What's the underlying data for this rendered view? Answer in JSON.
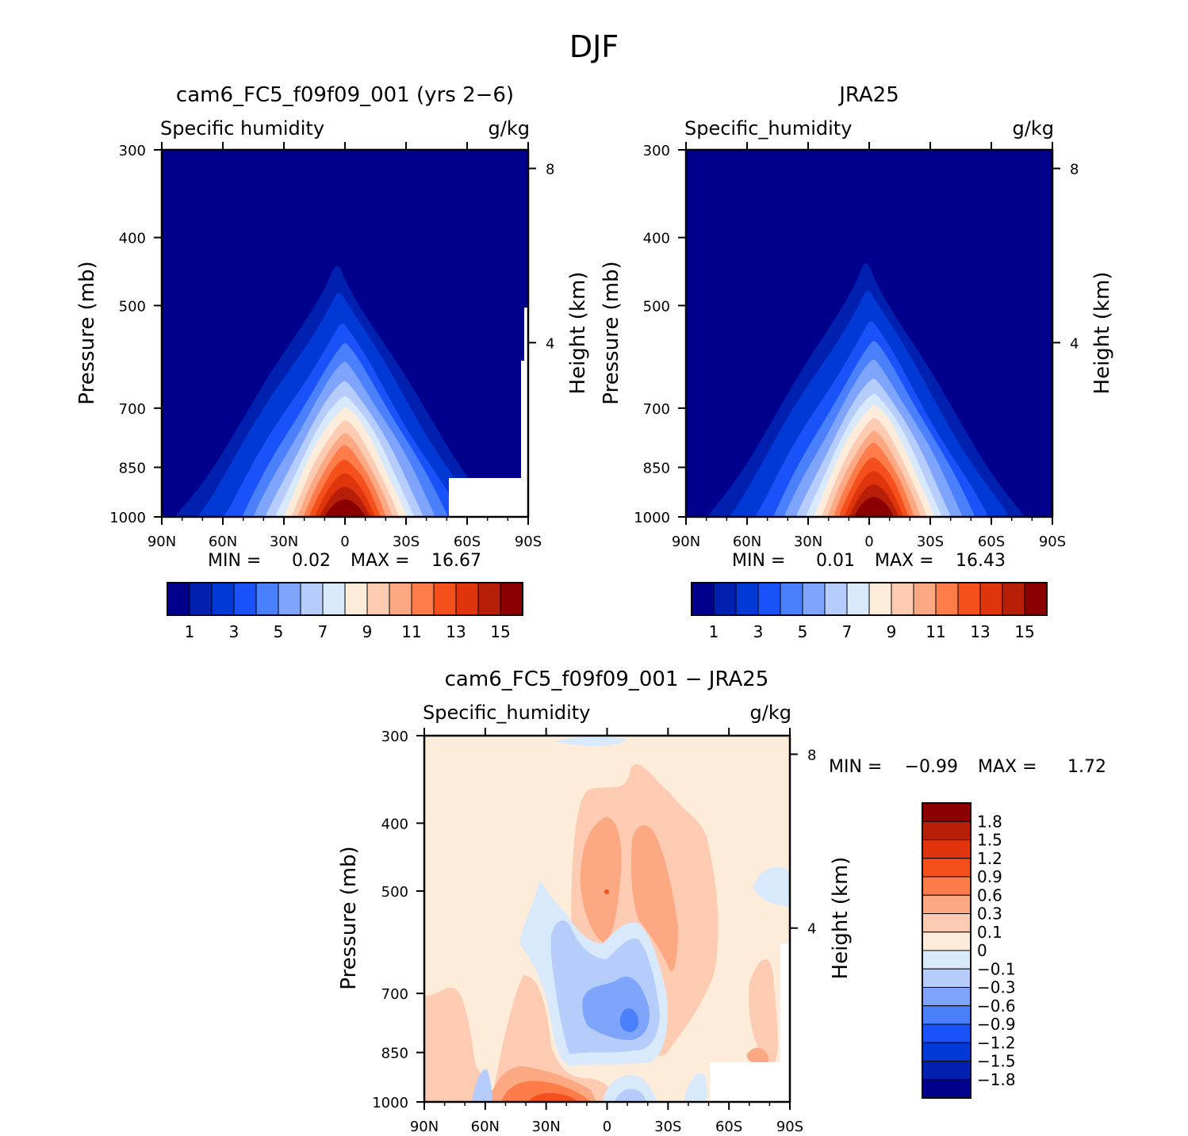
{
  "figure_title": "DJF",
  "chart_data": [
    {
      "type": "heatmap",
      "title": "cam6_FC5_f09f09_001 (yrs 2−6)",
      "variable": "Specific humidity",
      "units": "g/kg",
      "ylabel": "Pressure (mb)",
      "ylabel2": "Height (km)",
      "x_ticks": [
        "90N",
        "60N",
        "30N",
        "0",
        "30S",
        "60S",
        "90S"
      ],
      "y_ticks": [
        "300",
        "400",
        "500",
        "700",
        "850",
        "1000"
      ],
      "y2_ticks": [
        "8",
        "4"
      ],
      "min_label": "MIN =",
      "min": "0.02",
      "max_label": "MAX =",
      "max": "16.67",
      "colorbar_ticks": [
        "1",
        "3",
        "5",
        "7",
        "9",
        "11",
        "13",
        "15"
      ],
      "peak_value": 16.67
    },
    {
      "type": "heatmap",
      "title": "JRA25",
      "variable": "Specific_humidity",
      "units": "g/kg",
      "ylabel": "Pressure (mb)",
      "ylabel2": "Height (km)",
      "x_ticks": [
        "90N",
        "60N",
        "30N",
        "0",
        "30S",
        "60S",
        "90S"
      ],
      "y_ticks": [
        "300",
        "400",
        "500",
        "700",
        "850",
        "1000"
      ],
      "y2_ticks": [
        "8",
        "4"
      ],
      "min_label": "MIN =",
      "min": "0.01",
      "max_label": "MAX =",
      "max": "16.43",
      "colorbar_ticks": [
        "1",
        "3",
        "5",
        "7",
        "9",
        "11",
        "13",
        "15"
      ],
      "peak_value": 16.43
    },
    {
      "type": "heatmap",
      "title": "cam6_FC5_f09f09_001 − JRA25",
      "variable": "Specific_humidity",
      "units": "g/kg",
      "ylabel": "Pressure (mb)",
      "ylabel2": "Height (km)",
      "x_ticks": [
        "90N",
        "60N",
        "30N",
        "0",
        "30S",
        "60S",
        "90S"
      ],
      "y_ticks": [
        "300",
        "400",
        "500",
        "700",
        "850",
        "1000"
      ],
      "y2_ticks": [
        "8",
        "4"
      ],
      "min_label": "MIN =",
      "min": "−0.99",
      "max_label": "MAX =",
      "max": "1.72",
      "colorbar_ticks": [
        "1.8",
        "1.5",
        "1.2",
        "0.9",
        "0.6",
        "0.3",
        "0.1",
        "0",
        "−0.1",
        "−0.3",
        "−0.6",
        "−0.9",
        "−1.2",
        "−1.5",
        "−1.8"
      ]
    }
  ],
  "colors": {
    "palette": [
      "#00008d",
      "#0021b0",
      "#0039d5",
      "#1a52fa",
      "#4a80fb",
      "#7ea4fb",
      "#b6cdfc",
      "#d8e9fc",
      "#feecda",
      "#fdcbb2",
      "#fca882",
      "#fd7c4a",
      "#f5501c",
      "#df340c",
      "#b81f08",
      "#8b0000"
    ]
  }
}
